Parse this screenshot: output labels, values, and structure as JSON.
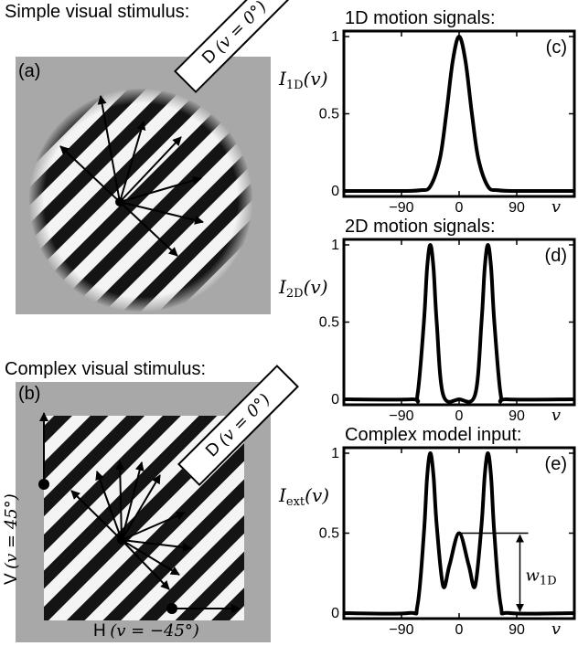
{
  "left": {
    "simple_heading": "Simple visual stimulus:",
    "complex_heading": "Complex visual stimulus:",
    "panel_a": "(a)",
    "panel_b": "(b)",
    "d_label_letter": "D",
    "d_label_math": "(v = 0°)",
    "v_label_letter": "V",
    "v_label_math": "(v = 45°)",
    "h_label_letter": "H",
    "h_label_math": "(v = −45°)"
  },
  "colors": {
    "stimulus_bg": "#a8a8a8",
    "line": "#000000"
  },
  "chart_data": [
    {
      "type": "line",
      "title": "1D motion signals:",
      "panel_label": "(c)",
      "ylabel": "I1D(v)",
      "ylabel_main": "I",
      "ylabel_sub": "1D",
      "ylabel_arg": "(v)",
      "xlabel": "v",
      "xticks": [
        -90,
        0,
        90
      ],
      "yticks": [
        0,
        0.5,
        1
      ],
      "xlim": [
        -180,
        180
      ],
      "ylim": [
        0,
        1
      ],
      "series": [
        {
          "x": [
            -180,
            -90,
            -60,
            -45,
            -30,
            -20,
            -10,
            0,
            10,
            20,
            30,
            45,
            60,
            90,
            180
          ],
          "y": [
            0,
            0,
            0.005,
            0.03,
            0.21,
            0.5,
            0.84,
            1,
            0.84,
            0.5,
            0.21,
            0.03,
            0.005,
            0,
            0
          ]
        }
      ]
    },
    {
      "type": "line",
      "title": "2D motion signals:",
      "panel_label": "(d)",
      "ylabel": "I2D(v)",
      "ylabel_main": "I",
      "ylabel_sub": "2D",
      "ylabel_arg": "(v)",
      "xlabel": "v",
      "xticks": [
        -90,
        0,
        90
      ],
      "yticks": [
        0,
        0.5,
        1
      ],
      "xlim": [
        -180,
        180
      ],
      "ylim": [
        0,
        1
      ],
      "series": [
        {
          "x": [
            -180,
            -75,
            -65,
            -55,
            -50,
            -45,
            -40,
            -35,
            -25,
            0,
            25,
            35,
            40,
            45,
            50,
            55,
            65,
            75,
            180
          ],
          "y": [
            0,
            0,
            0.03,
            0.5,
            0.85,
            1,
            0.85,
            0.5,
            0.03,
            0,
            0.03,
            0.5,
            0.85,
            1,
            0.85,
            0.5,
            0.03,
            0,
            0
          ]
        }
      ]
    },
    {
      "type": "line",
      "title": "Complex model input:",
      "panel_label": "(e)",
      "ylabel": "Iext(v)",
      "ylabel_main": "I",
      "ylabel_sub": "ext",
      "ylabel_arg": "(v)",
      "xlabel": "v",
      "xticks": [
        -90,
        0,
        90
      ],
      "yticks": [
        0,
        0.5,
        1
      ],
      "xlim": [
        -180,
        180
      ],
      "ylim": [
        0,
        1
      ],
      "annotation": "w1D",
      "annotation_main": "w",
      "annotation_sub": "1D",
      "series": [
        {
          "x": [
            -180,
            -80,
            -65,
            -55,
            -50,
            -45,
            -40,
            -35,
            -25,
            -15,
            0,
            15,
            25,
            35,
            40,
            45,
            50,
            55,
            65,
            80,
            180
          ],
          "y": [
            0,
            0,
            0.05,
            0.5,
            0.85,
            1,
            0.86,
            0.55,
            0.17,
            0.3,
            0.5,
            0.3,
            0.17,
            0.55,
            0.86,
            1,
            0.85,
            0.5,
            0.05,
            0,
            0
          ]
        }
      ]
    }
  ]
}
